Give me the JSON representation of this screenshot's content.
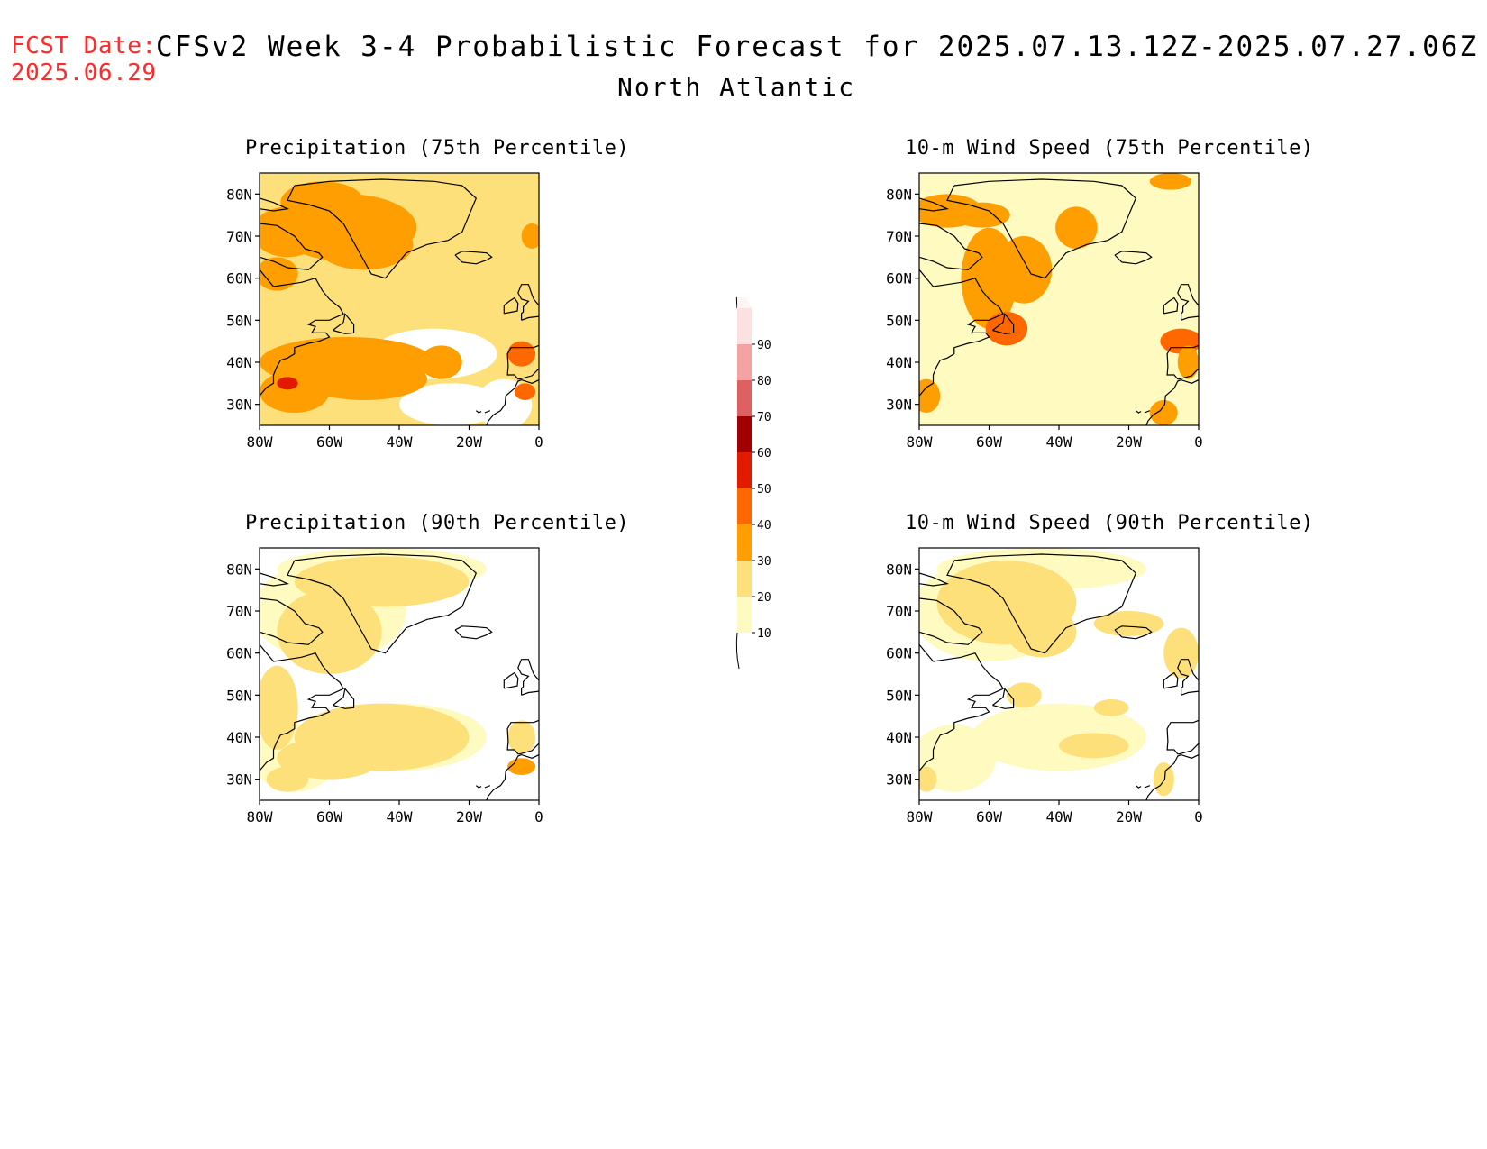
{
  "header": {
    "fcst_label": "FCST Date:",
    "fcst_date": "2025.06.29",
    "title": "CFSv2 Week 3-4 Probabilistic Forecast for 2025.07.13.12Z-2025.07.27.06Z",
    "region": "North Atlantic"
  },
  "axes": {
    "lon_ticks": [
      "80W",
      "60W",
      "40W",
      "20W",
      "0"
    ],
    "lat_ticks": [
      "80N",
      "70N",
      "60N",
      "50N",
      "40N",
      "30N"
    ]
  },
  "panels": [
    {
      "id": "precip-75",
      "title": "Precipitation (75th Percentile)",
      "dominant_level": 2
    },
    {
      "id": "wind-75",
      "title": "10-m Wind Speed (75th Percentile)",
      "dominant_level": 1
    },
    {
      "id": "precip-90",
      "title": "Precipitation (90th Percentile)",
      "dominant_level": 0
    },
    {
      "id": "wind-90",
      "title": "10-m Wind Speed (90th Percentile)",
      "dominant_level": 0
    }
  ],
  "colorbar": {
    "labels": [
      "10",
      "20",
      "30",
      "40",
      "50",
      "60",
      "70",
      "80",
      "90"
    ],
    "colors": [
      "#fffbc0",
      "#fde07a",
      "#fe9e00",
      "#ff6800",
      "#e21a00",
      "#a10000",
      "#df6060",
      "#f4a3a3",
      "#fde1e1"
    ]
  }
}
